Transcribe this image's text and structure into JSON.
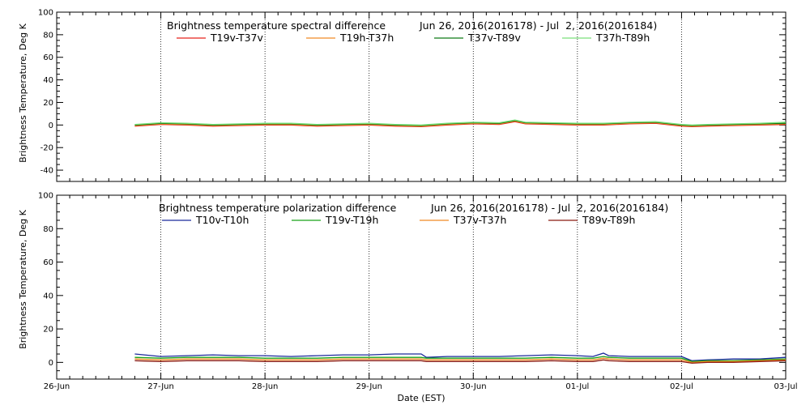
{
  "chart_data": [
    {
      "type": "line",
      "title": "Brightness temperature spectral difference",
      "date_range": "Jun 26, 2016(2016178) - Jul  2, 2016(2016184)",
      "ylabel": "Brightness Temperature, Deg K",
      "xlabel": "",
      "xlim": [
        0,
        7
      ],
      "ylim": [
        -50,
        100
      ],
      "yticks": [
        -40,
        -20,
        0,
        20,
        40,
        60,
        80,
        100
      ],
      "xticks": [
        0,
        1,
        2,
        3,
        4,
        5,
        6,
        7
      ],
      "xtick_labels": [
        "",
        "",
        "",
        "",
        "",
        "",
        "",
        ""
      ],
      "grid": "dotted vertical at day boundaries",
      "legend_position": "top",
      "series": [
        {
          "name": "T19v-T37v",
          "color": "#e8231c",
          "x": [
            0.75,
            1.0,
            1.25,
            1.5,
            1.75,
            2.0,
            2.25,
            2.5,
            2.75,
            3.0,
            3.25,
            3.5,
            3.75,
            4.0,
            4.25,
            4.4,
            4.5,
            4.75,
            5.0,
            5.25,
            5.5,
            5.75,
            6.0,
            6.1,
            6.25,
            6.5,
            6.75,
            7.0
          ],
          "values": [
            -1,
            0.5,
            0,
            -1,
            -0.5,
            0,
            0,
            -1,
            -0.5,
            0,
            -1,
            -1.5,
            0,
            1,
            0.5,
            3,
            1,
            0.5,
            0,
            0,
            1,
            1.5,
            -1,
            -1.5,
            -1,
            -0.5,
            0,
            0.5
          ]
        },
        {
          "name": "T19h-T37h",
          "color": "#f08a24",
          "x": [
            0.75,
            1.0,
            1.25,
            1.5,
            1.75,
            2.0,
            2.25,
            2.5,
            2.75,
            3.0,
            3.25,
            3.5,
            3.75,
            4.0,
            4.25,
            4.4,
            4.5,
            4.75,
            5.0,
            5.25,
            5.5,
            5.75,
            6.0,
            6.1,
            6.25,
            6.5,
            6.75,
            7.0
          ],
          "values": [
            -0.5,
            1,
            0.5,
            -0.5,
            0,
            0.5,
            0.5,
            -0.5,
            0,
            0.5,
            -0.5,
            -1,
            0.5,
            1.5,
            1,
            3.5,
            1.5,
            1,
            0.5,
            0.5,
            1.5,
            2,
            -0.5,
            -1,
            -0.5,
            0,
            0.5,
            1
          ]
        },
        {
          "name": "T37v-T89v",
          "color": "#0d7a16",
          "x": [
            0.75,
            1.0,
            1.25,
            1.5,
            1.75,
            2.0,
            2.25,
            2.5,
            2.75,
            3.0,
            3.25,
            3.5,
            3.75,
            4.0,
            4.25,
            4.4,
            4.5,
            4.75,
            5.0,
            5.25,
            5.5,
            5.75,
            6.0,
            6.1,
            6.25,
            6.5,
            6.75,
            7.0
          ],
          "values": [
            0,
            1.5,
            1,
            0,
            0.5,
            1,
            1,
            0,
            0.5,
            1,
            0,
            -0.5,
            1,
            2,
            1.5,
            4,
            2,
            1.5,
            1,
            1,
            2,
            2.5,
            0,
            -0.5,
            0,
            0.5,
            1,
            1.5
          ]
        },
        {
          "name": "T37h-T89h",
          "color": "#7be07b",
          "x": [
            0.75,
            1.0,
            1.25,
            1.5,
            1.75,
            2.0,
            2.25,
            2.5,
            2.75,
            3.0,
            3.25,
            3.5,
            3.75,
            4.0,
            4.25,
            4.4,
            4.5,
            4.75,
            5.0,
            5.25,
            5.5,
            5.75,
            6.0,
            6.1,
            6.25,
            6.5,
            6.75,
            7.0
          ],
          "values": [
            0.5,
            2,
            1.5,
            0.5,
            1,
            1.5,
            1.5,
            0.5,
            1,
            1.5,
            0.5,
            0,
            1.5,
            2.5,
            2,
            4.5,
            2.5,
            2,
            1.5,
            1.5,
            2.5,
            3,
            0.5,
            0,
            0.5,
            1,
            1.5,
            2.5
          ]
        }
      ]
    },
    {
      "type": "line",
      "title": "Brightness temperature polarization difference",
      "date_range": "Jun 26, 2016(2016178) - Jul  2, 2016(2016184)",
      "ylabel": "Brightness Temperature, Deg K",
      "xlabel": "Date (EST)",
      "xlim": [
        0,
        7
      ],
      "ylim": [
        -10,
        100
      ],
      "yticks": [
        0,
        20,
        40,
        60,
        80,
        100
      ],
      "xticks": [
        0,
        1,
        2,
        3,
        4,
        5,
        6,
        7
      ],
      "xtick_labels": [
        "26-Jun",
        "27-Jun",
        "28-Jun",
        "29-Jun",
        "30-Jun",
        "01-Jul",
        "02-Jul",
        "03-Jul"
      ],
      "grid": "dotted vertical at day boundaries",
      "legend_position": "top",
      "series": [
        {
          "name": "T10v-T10h",
          "color": "#1b2a9c",
          "x": [
            0.75,
            1.0,
            1.25,
            1.5,
            1.75,
            2.0,
            2.25,
            2.5,
            2.75,
            3.0,
            3.25,
            3.5,
            3.55,
            3.75,
            4.0,
            4.25,
            4.5,
            4.75,
            5.0,
            5.15,
            5.25,
            5.3,
            5.5,
            5.75,
            6.0,
            6.1,
            6.25,
            6.5,
            6.75,
            7.0
          ],
          "values": [
            5,
            3.5,
            4,
            4.5,
            4,
            4,
            3.5,
            4,
            4.5,
            4.5,
            5,
            5,
            3,
            3.5,
            3.5,
            3.5,
            4,
            4.5,
            4,
            3.5,
            5.5,
            4,
            3.5,
            3.5,
            3.5,
            1,
            1.5,
            2,
            2,
            3
          ]
        },
        {
          "name": "T19v-T19h",
          "color": "#19a319",
          "x": [
            0.75,
            1.0,
            1.25,
            1.5,
            1.75,
            2.0,
            2.25,
            2.5,
            2.75,
            3.0,
            3.25,
            3.5,
            3.55,
            3.75,
            4.0,
            4.25,
            4.5,
            4.75,
            5.0,
            5.15,
            5.25,
            5.3,
            5.5,
            5.75,
            6.0,
            6.1,
            6.25,
            6.5,
            6.75,
            7.0
          ],
          "values": [
            3,
            2.5,
            3,
            3,
            3,
            2.5,
            2.5,
            2.5,
            3,
            3,
            3,
            3,
            2.5,
            2.5,
            2.5,
            2.5,
            2.5,
            3,
            2.5,
            2.5,
            3.5,
            3,
            2.5,
            2.5,
            2.5,
            0.5,
            1,
            1,
            1.5,
            2
          ]
        },
        {
          "name": "T37v-T37h",
          "color": "#f08a24",
          "x": [
            0.75,
            1.0,
            1.25,
            1.5,
            1.75,
            2.0,
            2.25,
            2.5,
            2.75,
            3.0,
            3.25,
            3.5,
            3.55,
            3.75,
            4.0,
            4.25,
            4.5,
            4.75,
            5.0,
            5.15,
            5.25,
            5.3,
            5.5,
            5.75,
            6.0,
            6.1,
            6.25,
            6.5,
            6.75,
            7.0
          ],
          "values": [
            2,
            1.5,
            2,
            2,
            2,
            1.5,
            1.5,
            1.5,
            2,
            2,
            2,
            2,
            1.5,
            1.5,
            1.5,
            1.5,
            1.5,
            2,
            1.5,
            1.5,
            2.5,
            2,
            1.5,
            1.5,
            1.5,
            0,
            0.5,
            0.5,
            1,
            1.5
          ]
        },
        {
          "name": "T89v-T89h",
          "color": "#8b1a10",
          "x": [
            0.75,
            1.0,
            1.25,
            1.5,
            1.75,
            2.0,
            2.25,
            2.5,
            2.75,
            3.0,
            3.25,
            3.5,
            3.55,
            3.75,
            4.0,
            4.25,
            4.5,
            4.75,
            5.0,
            5.15,
            5.25,
            5.3,
            5.5,
            5.75,
            6.0,
            6.1,
            6.25,
            6.5,
            6.75,
            7.0
          ],
          "values": [
            1,
            0.5,
            1,
            1,
            1,
            0.5,
            0.5,
            0.5,
            1,
            1,
            1,
            1,
            0.5,
            0.5,
            0.5,
            0.5,
            0.5,
            1,
            0.5,
            0.5,
            1.5,
            1,
            0.5,
            0.5,
            0.5,
            -0.5,
            0,
            0,
            0.5,
            1
          ]
        }
      ]
    }
  ]
}
